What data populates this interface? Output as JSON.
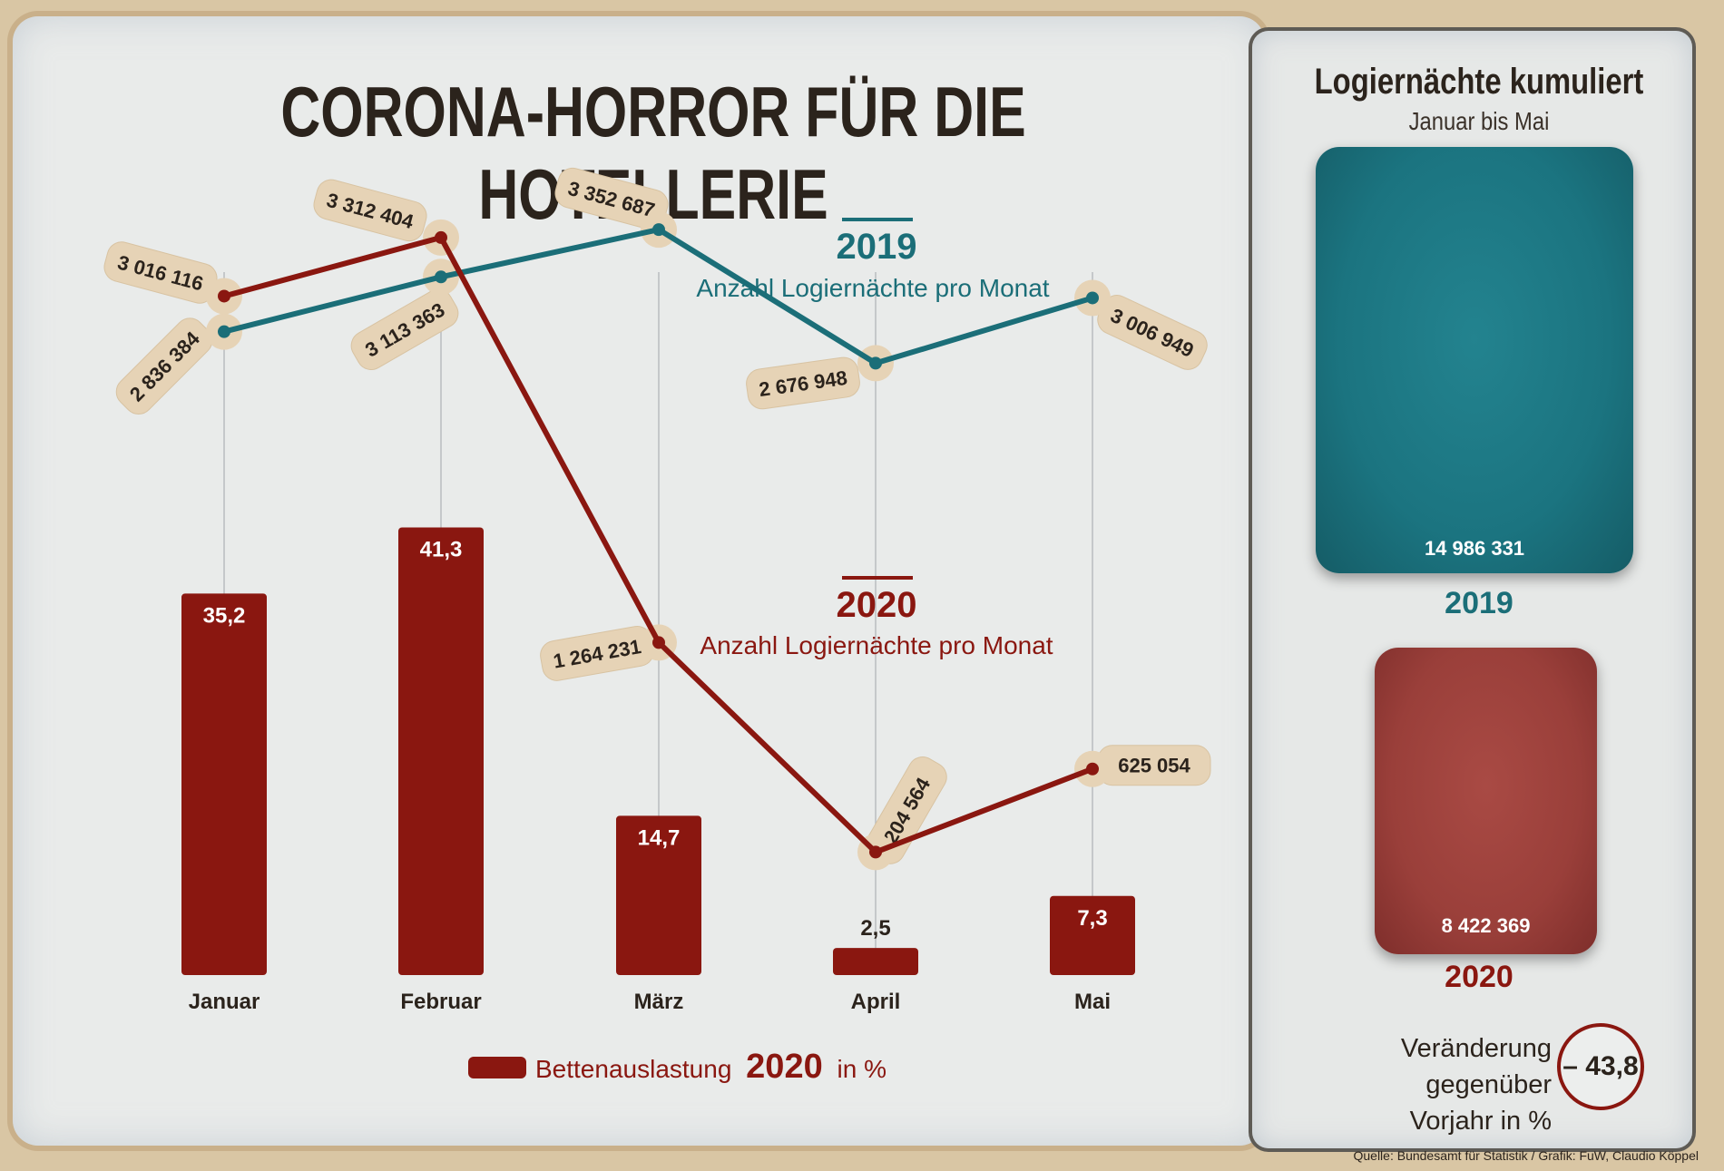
{
  "title": "CORONA-HORROR FÜR DIE HOTELLERIE",
  "colors": {
    "y2019": "#1b6e78",
    "y2020": "#8a1710",
    "tag": "#e6d3b6",
    "text": "#2b231c"
  },
  "legend": {
    "series_2019_year": "2019",
    "series_2019_desc": "Anzahl Logiernächte pro Monat",
    "series_2020_year": "2020",
    "series_2020_desc": "Anzahl Logiernächte pro Monat",
    "bars_prefix": "Bettenauslastung",
    "bars_year": "2020",
    "bars_suffix": "in %"
  },
  "side": {
    "title": "Logiernächte kumuliert",
    "subtitle": "Januar bis Mai",
    "total_2019": "14 986 331",
    "label_2019": "2019",
    "total_2020": "8 422 369",
    "label_2020": "2020",
    "change_line1": "Veränderung gegenüber",
    "change_line2": "Vorjahr in %",
    "change_value": "– 43,8"
  },
  "source": "Quelle: Bundesamt für Statistik / Grafik: FuW, Claudio Köppel",
  "chart_data": {
    "type": "line",
    "categories": [
      "Januar",
      "Februar",
      "März",
      "April",
      "Mai"
    ],
    "series": [
      {
        "name": "2019",
        "values": [
          2836384,
          3113363,
          3352687,
          2676948,
          3006949
        ],
        "labels": [
          "2 836 384",
          "3 113 363",
          "3 352 687",
          "2 676 948",
          "3 006 949"
        ]
      },
      {
        "name": "2020",
        "values": [
          3016116,
          3312404,
          1264231,
          204564,
          625054
        ],
        "labels": [
          "3 016 116",
          "3 312 404",
          "1 264 231",
          "204 564",
          "625 054"
        ]
      }
    ],
    "bars": {
      "name": "Bettenauslastung 2020 in %",
      "values": [
        35.2,
        41.3,
        14.7,
        2.5,
        7.3
      ],
      "labels": [
        "35,2",
        "41,3",
        "14,7",
        "2,5",
        "7,3"
      ]
    },
    "cumulative": {
      "2019": 14986331,
      "2020": 8422369,
      "change_percent": -43.8
    }
  }
}
